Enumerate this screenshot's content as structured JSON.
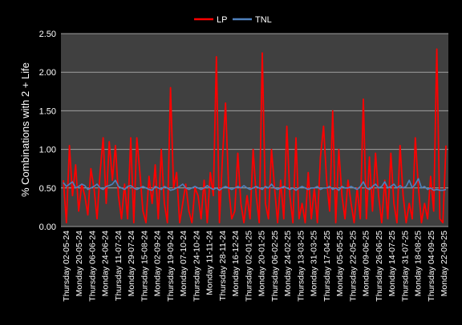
{
  "chart_data": {
    "type": "line",
    "title": "",
    "xlabel": "",
    "ylabel": "% Combinations with 2 + Life",
    "ylim": [
      0,
      2.5
    ],
    "yticks": [
      "0.00",
      "0.50",
      "1.00",
      "1.50",
      "2.00",
      "2.50"
    ],
    "grid": true,
    "legend": "top-center",
    "colors": {
      "LP": "#ff0000",
      "TNL": "#4f81bd",
      "plot_bg": "#404040",
      "grid": "#a0a0a0"
    },
    "x_tick_labels": [
      "Thursday  02-05-24",
      "Monday  20-05-24",
      "Thursday  06-06-24",
      "Monday  24-06-24",
      "Thursday  11-07-24",
      "Monday  29-07-24",
      "Thursday  15-08-24",
      "Monday  02-09-24",
      "Thursday  19-09-24",
      "Monday  07-10-24",
      "Thursday  24-10-24",
      "Monday  11-11-24",
      "Thursday  28-11-24",
      "Monday  16-12-24",
      "Thursday  02-01-25",
      "Monday  20-01-25",
      "Thursday  06-02-25",
      "Monday  24-02-25",
      "Thursday  13-03-25",
      "Monday  31-03-25",
      "Thursday  17-04-25",
      "Monday  05-05-25",
      "Thursday  22-05-25",
      "Monday  09-06-25",
      "Thursday  26-06-25",
      "Monday  14-07-25",
      "Thursday  31-07-25",
      "Monday  18-08-25",
      "Thursday  04-09-25",
      "Monday  22-09-25"
    ],
    "series": [
      {
        "name": "LP",
        "values": [
          0.6,
          0.05,
          1.05,
          0.4,
          0.8,
          0.2,
          0.55,
          0.4,
          0.15,
          0.75,
          0.5,
          0.1,
          0.7,
          1.15,
          0.3,
          1.1,
          0.6,
          1.05,
          0.4,
          0.1,
          0.55,
          0.1,
          1.15,
          0.05,
          1.15,
          0.7,
          0.2,
          0.05,
          0.65,
          0.3,
          0.8,
          0.1,
          1.0,
          0.3,
          0.05,
          1.8,
          0.5,
          0.7,
          0.05,
          0.3,
          0.55,
          0.2,
          0.05,
          0.5,
          0.4,
          0.1,
          0.6,
          0.05,
          0.7,
          0.4,
          2.2,
          0.05,
          0.9,
          1.6,
          0.5,
          0.1,
          0.2,
          0.95,
          0.3,
          0.05,
          0.4,
          0.1,
          1.0,
          0.4,
          0.05,
          2.25,
          0.3,
          0.1,
          1.0,
          0.5,
          0.05,
          0.6,
          0.1,
          1.3,
          0.4,
          0.05,
          1.15,
          0.1,
          0.3,
          0.05,
          0.7,
          0.1,
          0.5,
          0.05,
          0.9,
          1.3,
          0.6,
          0.2,
          1.5,
          0.05,
          1.0,
          0.4,
          0.1,
          0.6,
          0.3,
          0.05,
          0.5,
          0.1,
          1.65,
          0.1,
          0.9,
          0.2,
          0.95,
          0.4,
          0.05,
          0.6,
          0.1,
          0.95,
          0.3,
          0.05,
          1.05,
          0.4,
          0.05,
          0.3,
          0.1,
          1.15,
          0.5,
          0.05,
          0.3,
          0.1,
          0.65,
          0.2,
          2.3,
          0.1,
          0.05,
          1.05
        ]
      },
      {
        "name": "TNL",
        "values": [
          0.57,
          0.52,
          0.55,
          0.58,
          0.5,
          0.52,
          0.55,
          0.53,
          0.48,
          0.5,
          0.52,
          0.55,
          0.5,
          0.48,
          0.52,
          0.53,
          0.55,
          0.6,
          0.52,
          0.5,
          0.48,
          0.52,
          0.53,
          0.5,
          0.48,
          0.5,
          0.52,
          0.5,
          0.48,
          0.47,
          0.52,
          0.5,
          0.48,
          0.52,
          0.5,
          0.47,
          0.48,
          0.5,
          0.52,
          0.55,
          0.5,
          0.48,
          0.5,
          0.52,
          0.5,
          0.48,
          0.5,
          0.53,
          0.5,
          0.48,
          0.5,
          0.47,
          0.5,
          0.52,
          0.5,
          0.48,
          0.5,
          0.52,
          0.5,
          0.53,
          0.5,
          0.48,
          0.5,
          0.52,
          0.5,
          0.48,
          0.52,
          0.5,
          0.55,
          0.5,
          0.48,
          0.5,
          0.52,
          0.5,
          0.48,
          0.5,
          0.47,
          0.5,
          0.52,
          0.5,
          0.48,
          0.5,
          0.5,
          0.52,
          0.48,
          0.5,
          0.5,
          0.52,
          0.48,
          0.5,
          0.47,
          0.52,
          0.5,
          0.5,
          0.52,
          0.5,
          0.48,
          0.52,
          0.58,
          0.5,
          0.48,
          0.52,
          0.55,
          0.5,
          0.52,
          0.58,
          0.5,
          0.52,
          0.55,
          0.5,
          0.53,
          0.5,
          0.52,
          0.6,
          0.5,
          0.55,
          0.62,
          0.5,
          0.52,
          0.48,
          0.5,
          0.47,
          0.48,
          0.47,
          0.47,
          0.48
        ]
      }
    ]
  }
}
